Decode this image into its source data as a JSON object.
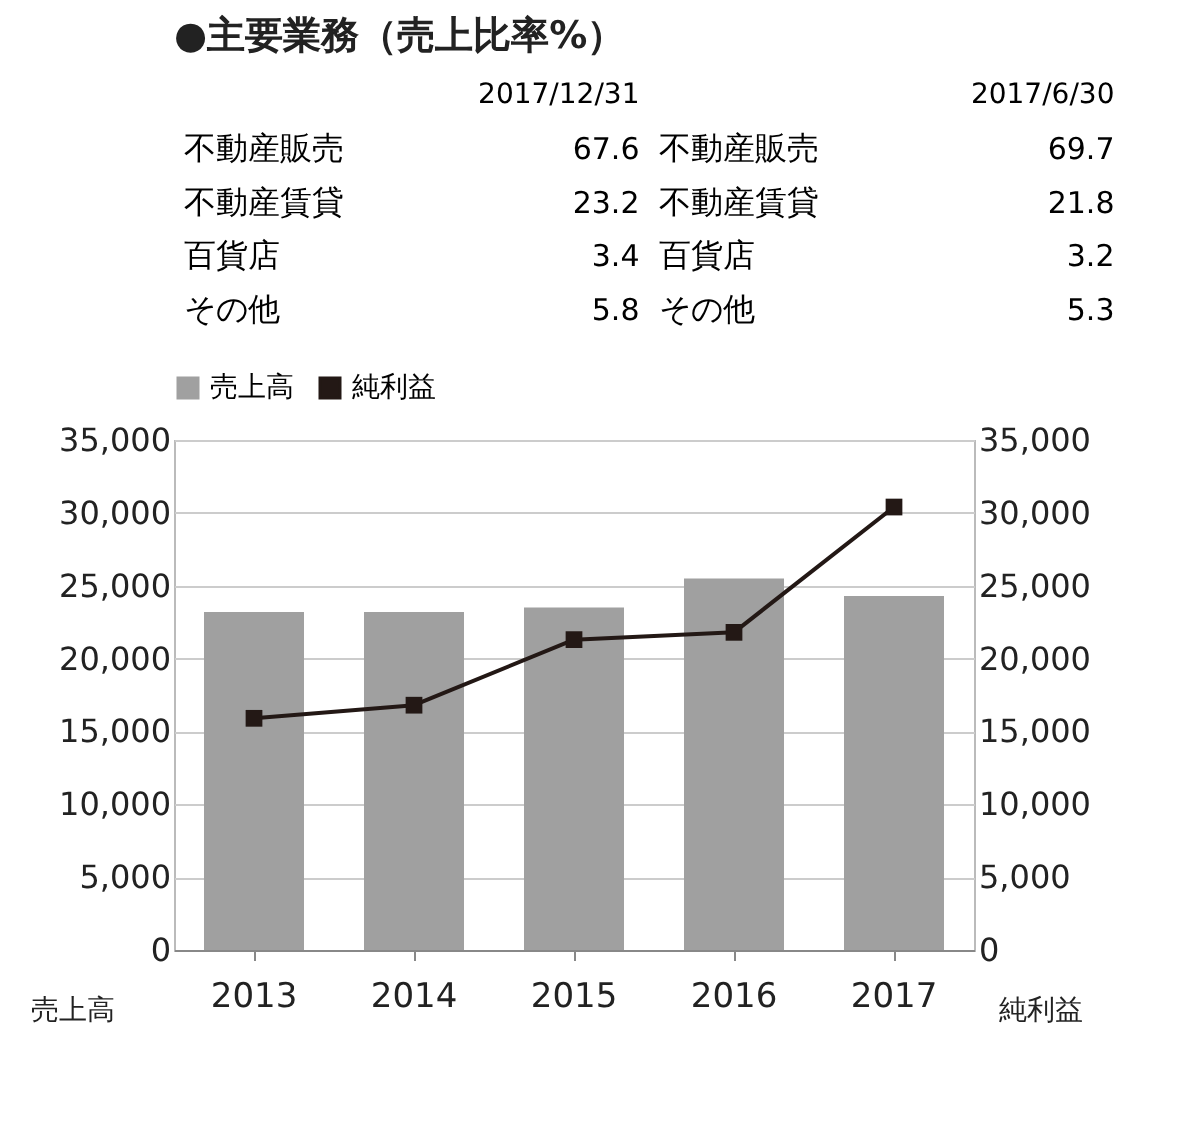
{
  "chart_data": [
    {
      "type": "other",
      "title": "●主要業務（売上比率%）",
      "categories": [
        "不動産販売",
        "不動産賃貸",
        "百貨店",
        "その他"
      ],
      "data_labels": true,
      "series": [
        {
          "name": "2017/12/31",
          "values": [
            67.6,
            23.2,
            3.4,
            5.8
          ]
        },
        {
          "name": "2017/6/30",
          "values": [
            69.7,
            21.8,
            3.2,
            5.3
          ]
        }
      ]
    },
    {
      "type": "bar",
      "categories": [
        "2013",
        "2014",
        "2015",
        "2016",
        "2017"
      ],
      "ylabel": "売上高",
      "y2label": "純利益",
      "ylim": [
        0,
        35000
      ],
      "yticks": [
        0,
        {
          "value": 5000,
          "label": "5,000"
        },
        {
          "value": 10000,
          "label": "10,000"
        },
        {
          "value": 15000,
          "label": "15,000"
        },
        {
          "value": 20000,
          "label": "20,000"
        },
        {
          "value": 25000,
          "label": "25,000"
        },
        {
          "value": 30000,
          "label": "30,000"
        },
        {
          "value": 35000,
          "label": "35,000"
        }
      ],
      "y2lim": [
        0,
        35000
      ],
      "y2ticks": [
        0,
        {
          "value": 5000,
          "label": "5,000"
        },
        {
          "value": 10000,
          "label": "10,000"
        },
        {
          "value": 15000,
          "label": "15,000"
        },
        {
          "value": 20000,
          "label": "20,000"
        },
        {
          "value": 25000,
          "label": "25,000"
        },
        {
          "value": 30000,
          "label": "30,000"
        },
        {
          "value": 35000,
          "label": "35,000"
        }
      ],
      "grid": "y",
      "legend": "top",
      "marker": "square",
      "line_style": "solid",
      "series": [
        {
          "name": "売上高",
          "type": "bar",
          "color": "#a0a0a0",
          "values": [
            23200,
            23200,
            23500,
            25500,
            24300
          ]
        },
        {
          "name": "純利益",
          "type": "line",
          "axis": "y2",
          "color": "#231815",
          "values": [
            15900,
            16800,
            21300,
            21800,
            30400
          ]
        }
      ]
    }
  ]
}
